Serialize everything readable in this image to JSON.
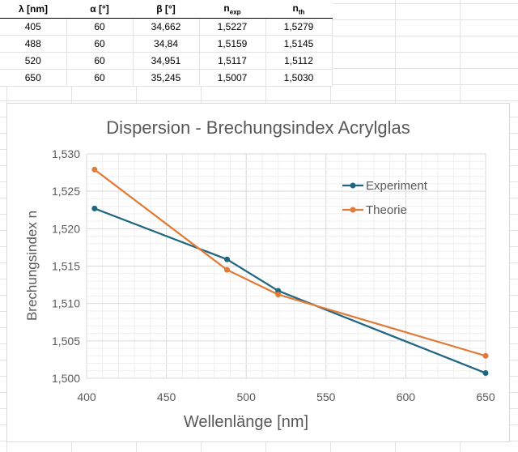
{
  "table": {
    "headers": [
      {
        "main": "λ [nm]",
        "sub": ""
      },
      {
        "main": "α [°]",
        "sub": ""
      },
      {
        "main": "β [°]",
        "sub": ""
      },
      {
        "main": "n",
        "sub": "exp"
      },
      {
        "main": "n",
        "sub": "th"
      }
    ],
    "rows": [
      [
        "405",
        "60",
        "34,662",
        "1,5227",
        "1,5279"
      ],
      [
        "488",
        "60",
        "34,84",
        "1,5159",
        "1,5145"
      ],
      [
        "520",
        "60",
        "34,951",
        "1,5117",
        "1,5112"
      ],
      [
        "650",
        "60",
        "35,245",
        "1,5007",
        "1,5030"
      ]
    ]
  },
  "chart_data": {
    "type": "line",
    "title": "Dispersion - Brechungsindex Acrylglas",
    "xlabel": "Wellenlänge [nm]",
    "ylabel": "Brechungsindex n",
    "xlim": [
      400,
      650
    ],
    "ylim": [
      1.5,
      1.53
    ],
    "xticks": [
      400,
      450,
      500,
      550,
      600,
      650
    ],
    "yticks": [
      1.5,
      1.505,
      1.51,
      1.515,
      1.52,
      1.525,
      1.53
    ],
    "xtick_labels": [
      "400",
      "450",
      "500",
      "550",
      "600",
      "650"
    ],
    "ytick_labels": [
      "1,500",
      "1,505",
      "1,510",
      "1,515",
      "1,520",
      "1,525",
      "1,530"
    ],
    "grid": true,
    "legend_position": "top-right",
    "series": [
      {
        "name": "Experiment",
        "color": "#1f6680",
        "x": [
          405,
          488,
          520,
          650
        ],
        "y": [
          1.5227,
          1.5159,
          1.5117,
          1.5007
        ]
      },
      {
        "name": "Theorie",
        "color": "#e07b39",
        "x": [
          405,
          488,
          520,
          650
        ],
        "y": [
          1.5279,
          1.5145,
          1.5112,
          1.503
        ]
      }
    ]
  }
}
